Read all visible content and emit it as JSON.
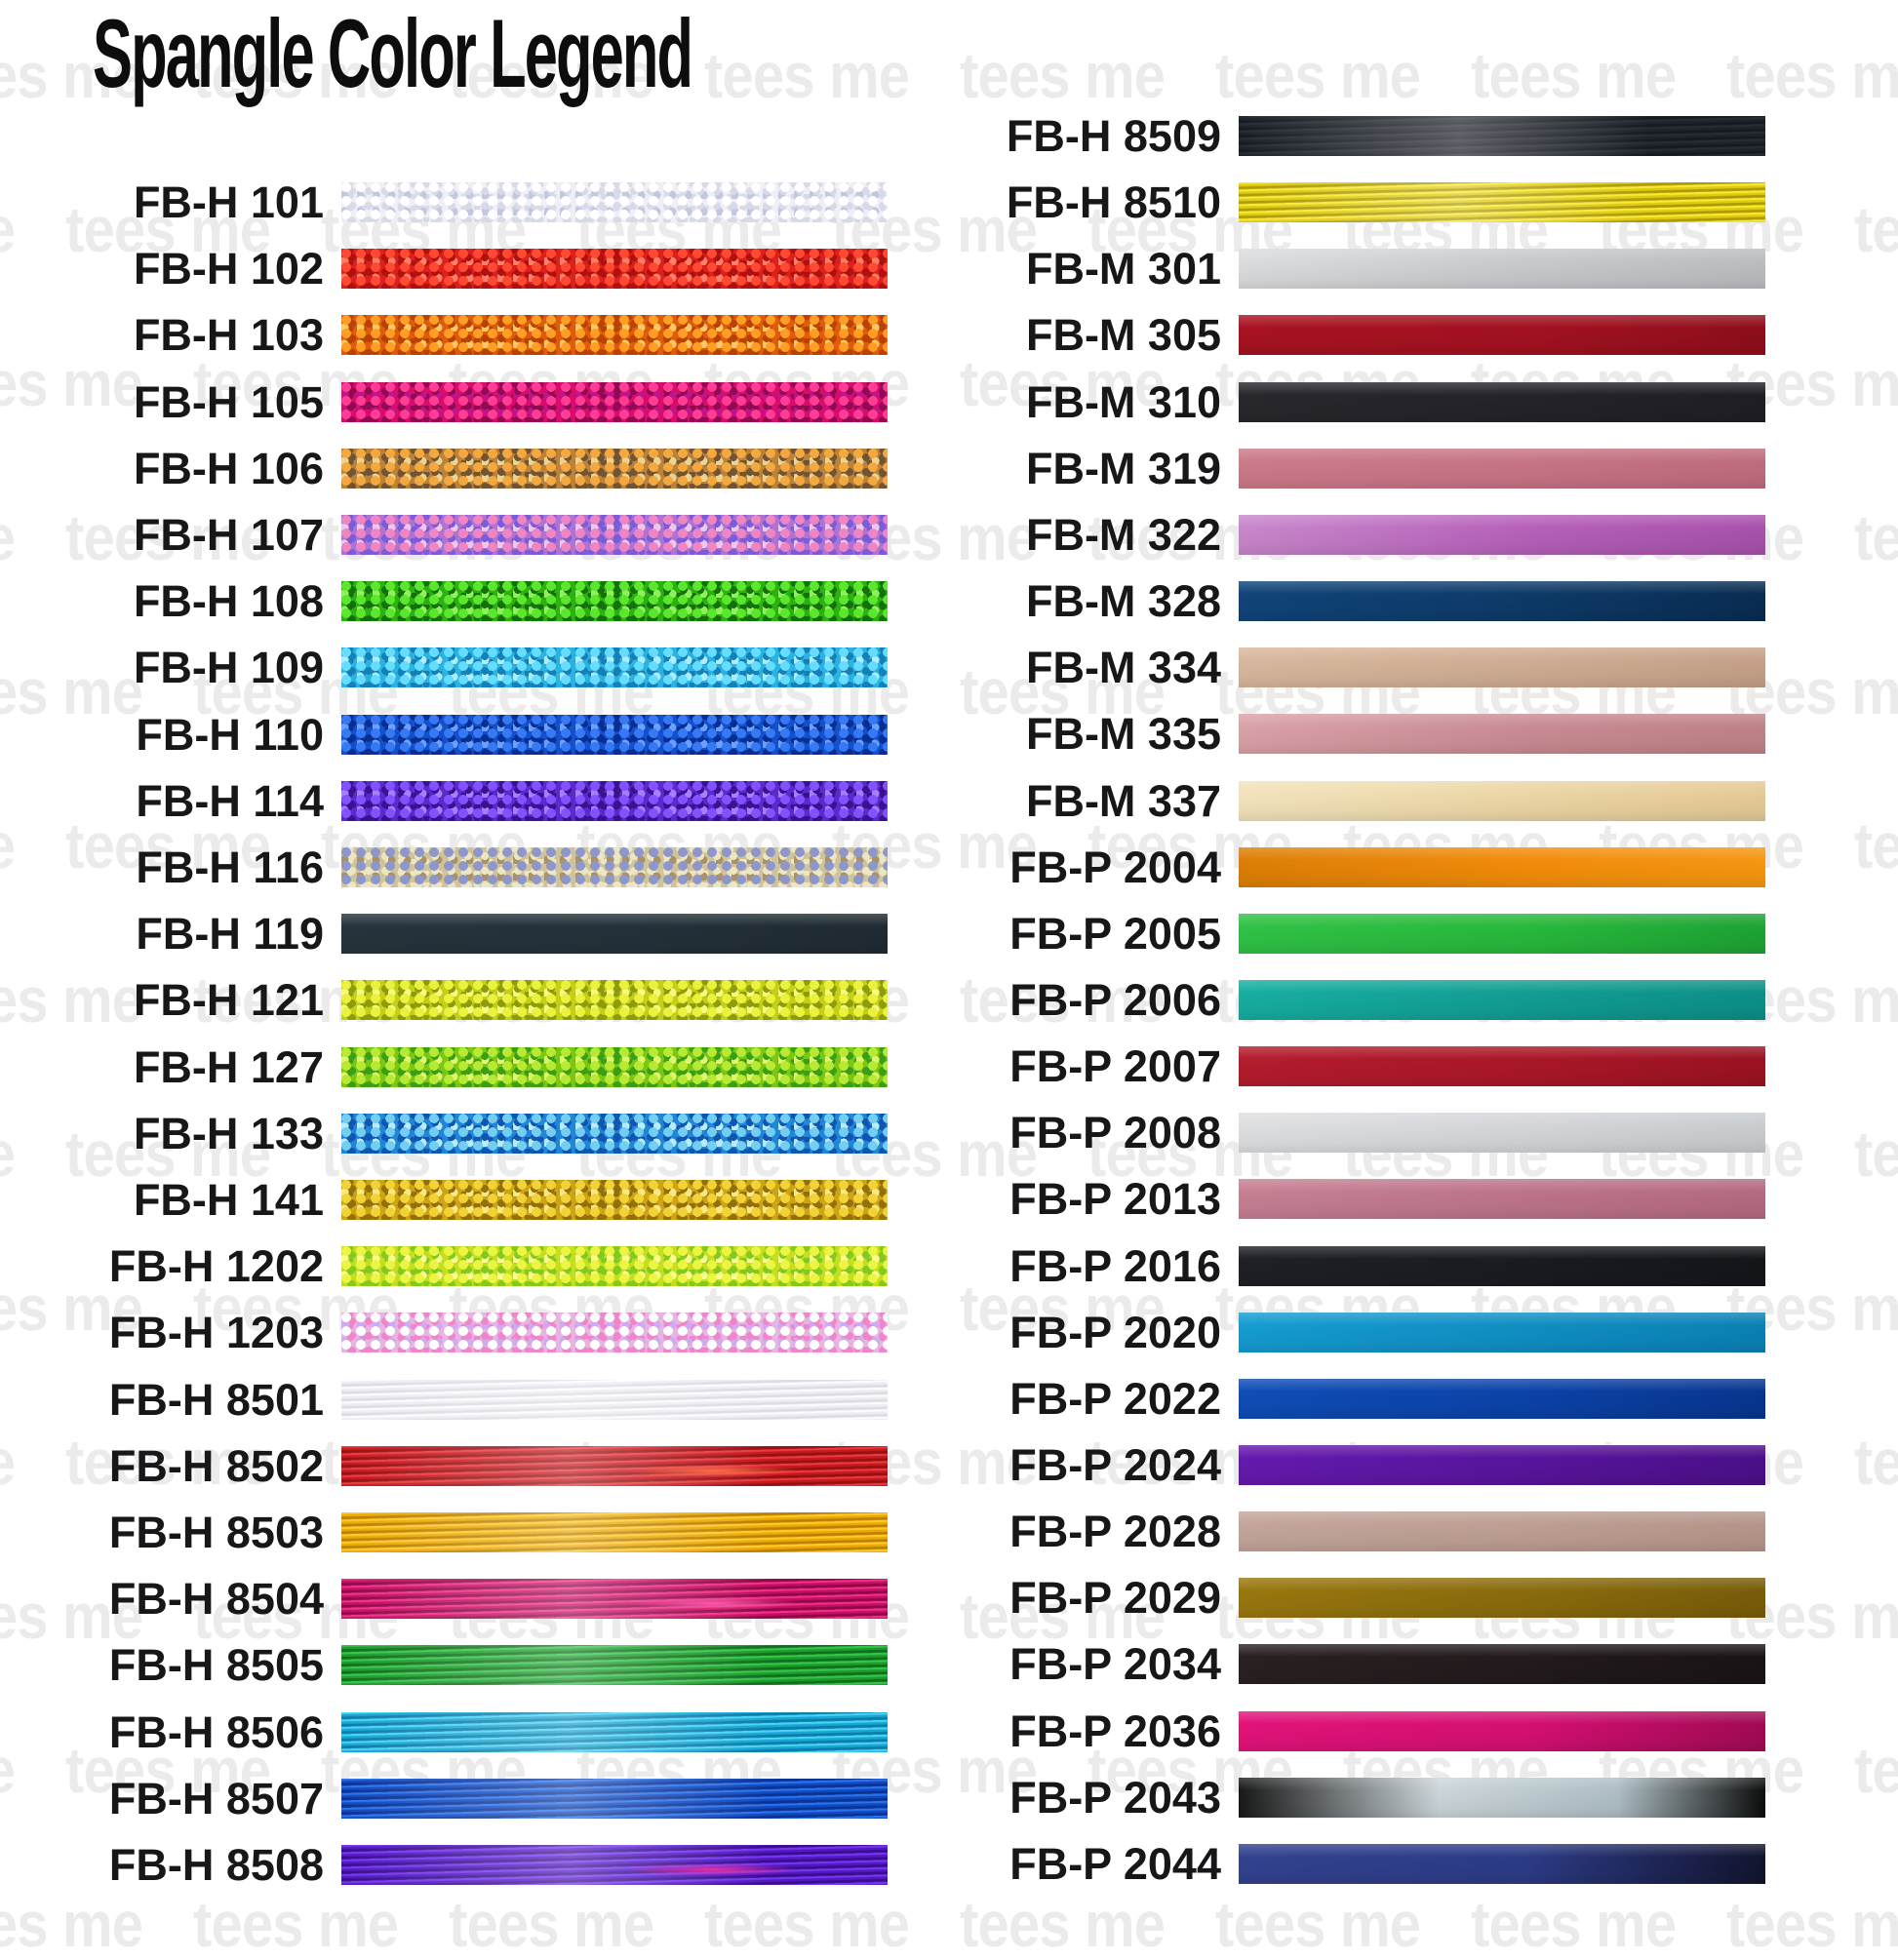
{
  "page": {
    "title": "Spangle Color Legend",
    "watermark_text": "tees me",
    "background": "#ffffff",
    "label_color": "#17171a",
    "watermark_color": "#ebebeb"
  },
  "columns": [
    {
      "side": "left",
      "rows": [
        {
          "label": "FB-H 101",
          "type": "glitter",
          "colors": [
            "#eef0f5",
            "#ffffff",
            "#d7dbe9",
            "#c2c8dd"
          ]
        },
        {
          "label": "FB-H 102",
          "type": "glitter",
          "colors": [
            "#dd201d",
            "#ff4a33",
            "#ad1210",
            "#ff8066"
          ]
        },
        {
          "label": "FB-H 103",
          "type": "glitter",
          "colors": [
            "#e05b0c",
            "#ff9e24",
            "#b84105",
            "#ffc862"
          ]
        },
        {
          "label": "FB-H 105",
          "type": "glitter",
          "colors": [
            "#da0c6b",
            "#ff3d95",
            "#8f0a52",
            "#c0148a"
          ]
        },
        {
          "label": "FB-H 106",
          "type": "glitter",
          "colors": [
            "#bd8138",
            "#f3a93f",
            "#705434",
            "#ebd493"
          ]
        },
        {
          "label": "FB-H 107",
          "type": "glitter",
          "colors": [
            "#b173d2",
            "#ef86c3",
            "#7b5cd8",
            "#ecc8ee"
          ]
        },
        {
          "label": "FB-H 108",
          "type": "glitter",
          "colors": [
            "#2bb210",
            "#5ce62e",
            "#14700a",
            "#92f060"
          ]
        },
        {
          "label": "FB-H 109",
          "type": "glitter",
          "colors": [
            "#29b2e2",
            "#66ddff",
            "#1480b4",
            "#aceeff"
          ]
        },
        {
          "label": "FB-H 110",
          "type": "glitter",
          "colors": [
            "#1350ce",
            "#3779f2",
            "#0a2e90",
            "#6aa0ff"
          ]
        },
        {
          "label": "FB-H 114",
          "type": "glitter",
          "colors": [
            "#5a2ace",
            "#8252ff",
            "#39138e",
            "#a87eff"
          ]
        },
        {
          "label": "FB-H 116",
          "type": "glitter",
          "colors": [
            "#cfc39c",
            "#8e97c9",
            "#ede6c5",
            "#a9926b"
          ]
        },
        {
          "label": "FB-H 119",
          "type": "foil",
          "colors": [
            "#27333c",
            "#243039",
            "#1f2a32"
          ]
        },
        {
          "label": "FB-H 121",
          "type": "glitter",
          "colors": [
            "#c4d016",
            "#eaf13e",
            "#8e9b0e",
            "#f7fa80"
          ]
        },
        {
          "label": "FB-H 127",
          "type": "glitter",
          "colors": [
            "#7cc711",
            "#b8ea35",
            "#3a9e17",
            "#def56e"
          ]
        },
        {
          "label": "FB-H 133",
          "type": "glitter",
          "colors": [
            "#2086d8",
            "#74cef2",
            "#1055ae",
            "#baebfa"
          ]
        },
        {
          "label": "FB-H 141",
          "type": "glitter",
          "colors": [
            "#cea412",
            "#f1d338",
            "#92700c",
            "#fae884"
          ]
        },
        {
          "label": "FB-H 1202",
          "type": "glitter",
          "colors": [
            "#c5df1f",
            "#edf544",
            "#82ca1f",
            "#fafc92"
          ]
        },
        {
          "label": "FB-H 1203",
          "type": "glitter",
          "colors": [
            "#e5b6e1",
            "#ffffff",
            "#f086ca",
            "#cfaaee"
          ]
        },
        {
          "label": "FB-H 8501",
          "type": "stripes",
          "colors": [
            "#fcfcfe",
            "#ededf2",
            "#dcdce4"
          ]
        },
        {
          "label": "FB-H 8502",
          "type": "stripes",
          "colors": [
            "#e83b3d",
            "#c5191f",
            "#941015"
          ],
          "flash": "#ff6f4d"
        },
        {
          "label": "FB-H 8503",
          "type": "stripes",
          "colors": [
            "#ffca2c",
            "#eda805",
            "#b78002"
          ]
        },
        {
          "label": "FB-H 8504",
          "type": "stripes",
          "colors": [
            "#ef3089",
            "#c40f63",
            "#8e0845"
          ],
          "flash": "#ff5cad"
        },
        {
          "label": "FB-H 8505",
          "type": "stripes",
          "colors": [
            "#36c44a",
            "#1d9b2c",
            "#0f6e1c"
          ]
        },
        {
          "label": "FB-H 8506",
          "type": "stripes",
          "colors": [
            "#4bd3f2",
            "#17a5d5",
            "#0d7ba6"
          ]
        },
        {
          "label": "FB-H 8507",
          "type": "stripes",
          "colors": [
            "#2b73ea",
            "#1149c0",
            "#0a3292"
          ]
        },
        {
          "label": "FB-H 8508",
          "type": "stripes",
          "colors": [
            "#7437ec",
            "#5318c2",
            "#380d8e"
          ],
          "flash": "#e830a8"
        }
      ]
    },
    {
      "side": "right",
      "rows": [
        {
          "label": "FB-H 8509",
          "type": "stripes",
          "colors": [
            "#272b33",
            "#1e222a",
            "#161a20"
          ]
        },
        {
          "label": "FB-H 8510",
          "type": "stripes",
          "colors": [
            "#f7e935",
            "#e1c90f",
            "#a89a07"
          ]
        },
        {
          "label": "FB-M 301",
          "type": "foil",
          "colors": [
            "#dadcde",
            "#c7c9cc",
            "#babcbf"
          ]
        },
        {
          "label": "FB-M 305",
          "type": "foil",
          "colors": [
            "#a81221",
            "#a31120",
            "#8e0e1a"
          ]
        },
        {
          "label": "FB-M 310",
          "type": "foil",
          "colors": [
            "#27272c",
            "#232329",
            "#1e1e24"
          ]
        },
        {
          "label": "FB-M 319",
          "type": "foil",
          "colors": [
            "#cb7a89",
            "#c67484",
            "#be6c7d"
          ]
        },
        {
          "label": "FB-M 322",
          "type": "foil",
          "colors": [
            "#c987cc",
            "#b660ba",
            "#a751ac"
          ]
        },
        {
          "label": "FB-M 328",
          "type": "foil",
          "colors": [
            "#10447a",
            "#0d3a68",
            "#092c52"
          ]
        },
        {
          "label": "FB-M 334",
          "type": "foil",
          "colors": [
            "#d8b89d",
            "#cfac92",
            "#c5a087"
          ]
        },
        {
          "label": "FB-M 335",
          "type": "foil",
          "colors": [
            "#daa2a8",
            "#c98b93",
            "#bf8188"
          ]
        },
        {
          "label": "FB-M 337",
          "type": "foil",
          "colors": [
            "#f3e3bc",
            "#ecd5a4",
            "#e4ca94"
          ]
        },
        {
          "label": "FB-P 2004",
          "type": "foil",
          "colors": [
            "#dd7e06",
            "#f28c0a",
            "#f59710"
          ]
        },
        {
          "label": "FB-P 2005",
          "type": "foil",
          "colors": [
            "#30c246",
            "#28b83c",
            "#1da233"
          ]
        },
        {
          "label": "FB-P 2006",
          "type": "foil",
          "colors": [
            "#17aea1",
            "#119d92",
            "#0c8f86"
          ]
        },
        {
          "label": "FB-P 2007",
          "type": "foil",
          "colors": [
            "#b41c2d",
            "#aa1727",
            "#9a1221"
          ]
        },
        {
          "label": "FB-P 2008",
          "type": "foil",
          "colors": [
            "#dddfe1",
            "#d3d5d8",
            "#c9cccf"
          ]
        },
        {
          "label": "FB-P 2013",
          "type": "foil",
          "colors": [
            "#c68093",
            "#bd7389",
            "#b46980"
          ]
        },
        {
          "label": "FB-P 2016",
          "type": "foil",
          "colors": [
            "#1e2025",
            "#191b20",
            "#131519"
          ]
        },
        {
          "label": "FB-P 2020",
          "type": "foil",
          "colors": [
            "#159cd1",
            "#0f8ec3",
            "#0a80b4"
          ]
        },
        {
          "label": "FB-P 2022",
          "type": "foil",
          "colors": [
            "#0e4db6",
            "#0b42a8",
            "#07358e"
          ]
        },
        {
          "label": "FB-P 2024",
          "type": "foil",
          "colors": [
            "#6519ae",
            "#58149c",
            "#4b0f88"
          ]
        },
        {
          "label": "FB-P 2028",
          "type": "foil",
          "colors": [
            "#c3a59b",
            "#bd9e92",
            "#b4958a"
          ]
        },
        {
          "label": "FB-P 2029",
          "type": "foil",
          "colors": [
            "#99770f",
            "#8a6b0c",
            "#785c09"
          ]
        },
        {
          "label": "FB-P 2034",
          "type": "foil",
          "colors": [
            "#292021",
            "#221a1c",
            "#1a1315"
          ]
        },
        {
          "label": "FB-P 2036",
          "type": "foil",
          "colors": [
            "#e2137a",
            "#d50f72",
            "#a00a55"
          ]
        },
        {
          "label": "FB-P 2043",
          "type": "foil",
          "colors": [
            "#181818",
            "#ccd6da",
            "#aebec4",
            "#0c0c0c"
          ]
        },
        {
          "label": "FB-P 2044",
          "type": "foil",
          "colors": [
            "#32428f",
            "#2c3b86",
            "#12142e"
          ]
        }
      ]
    }
  ]
}
